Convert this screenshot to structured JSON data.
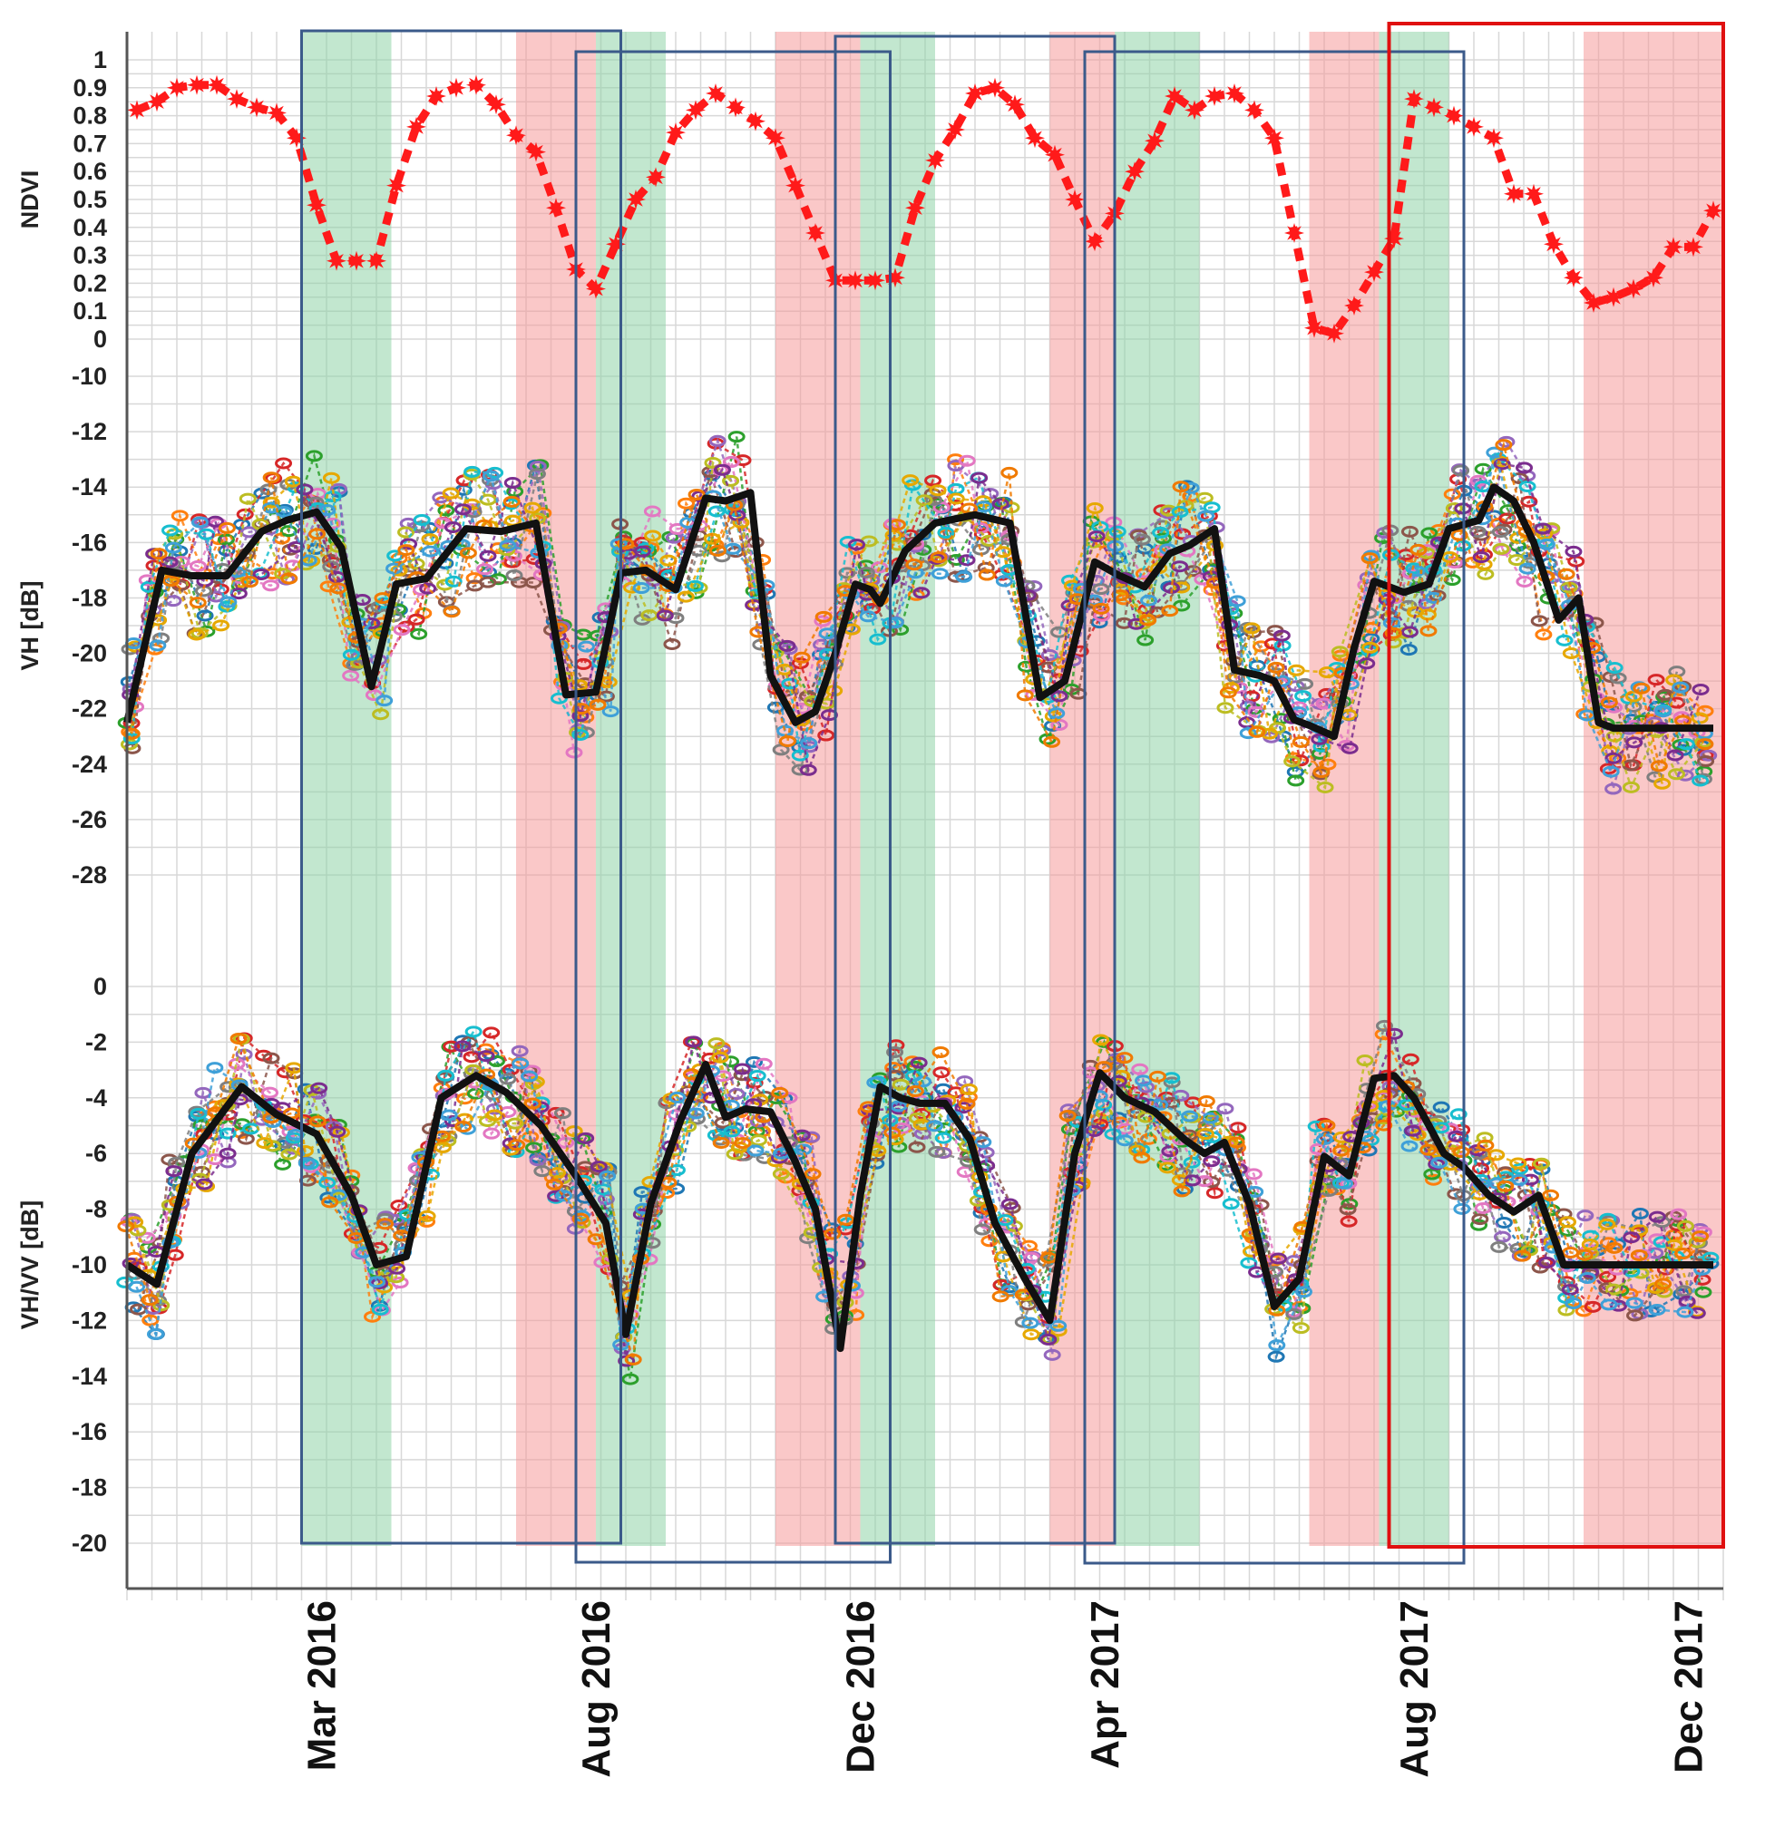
{
  "chart_data": {
    "type": "line",
    "colors": {
      "ndvi": "#ff1a1a",
      "mean_line": "#111111",
      "grid": "#d8d8d8",
      "band_green": "#8fd4a8",
      "band_red": "#f59a9a",
      "window_box": "#3b5a8a",
      "current_window_box": "#e01010",
      "scatter_palette": [
        "#1f77b4",
        "#ff7f0e",
        "#2ca02c",
        "#d62728",
        "#9467bd",
        "#8c564b",
        "#e377c2",
        "#7f7f7f",
        "#bcbd22",
        "#17becf",
        "#e6a800",
        "#7b2d8e",
        "#3fa0d8",
        "#f07a00"
      ]
    },
    "date_axis": {
      "labels": [
        "Mar 2016",
        "Aug 2016",
        "Dec 2016",
        "Apr 2017",
        "Aug 2017",
        "Dec 2017"
      ],
      "label_times": [
        3.9,
        9.4,
        14.7,
        19.6,
        25.8,
        31.3
      ],
      "range": [
        0,
        32
      ]
    },
    "panels": [
      {
        "id": "ndvi",
        "ylabel": "NDVI",
        "ylim": [
          0,
          1
        ],
        "ticks": [
          "1",
          "0.9",
          "0.8",
          "0.7",
          "0.6",
          "0.5",
          "0.4",
          "0.3",
          "0.2",
          "0.1",
          "0"
        ],
        "tick_values": [
          1,
          0.9,
          0.8,
          0.7,
          0.6,
          0.5,
          0.4,
          0.3,
          0.2,
          0.1,
          0
        ],
        "series": [
          {
            "name": "NDVI",
            "x": [
              0.2,
              0.6,
              1.0,
              1.4,
              1.8,
              2.2,
              2.6,
              3.0,
              3.4,
              3.8,
              4.2,
              4.6,
              5.0,
              5.4,
              5.8,
              6.2,
              6.6,
              7.0,
              7.4,
              7.8,
              8.2,
              8.6,
              9.0,
              9.4,
              9.8,
              10.2,
              10.6,
              11.0,
              11.4,
              11.8,
              12.2,
              12.6,
              13.0,
              13.4,
              13.8,
              14.2,
              14.6,
              15.0,
              15.4,
              15.8,
              16.2,
              16.6,
              17.0,
              17.4,
              17.8,
              18.2,
              18.6,
              19.0,
              19.4,
              19.8,
              20.2,
              20.6,
              21.0,
              21.4,
              21.8,
              22.2,
              22.6,
              23.0,
              23.4,
              23.8,
              24.2,
              24.6,
              25.0,
              25.4,
              25.8,
              26.2,
              26.6,
              27.0,
              27.4,
              27.8,
              28.2,
              28.6,
              29.0,
              29.4,
              29.8,
              30.2,
              30.6,
              31.0,
              31.4,
              31.8
            ],
            "y": [
              0.82,
              0.85,
              0.9,
              0.91,
              0.91,
              0.86,
              0.83,
              0.81,
              0.72,
              0.48,
              0.28,
              0.28,
              0.28,
              0.55,
              0.76,
              0.87,
              0.9,
              0.91,
              0.84,
              0.73,
              0.67,
              0.47,
              0.25,
              0.18,
              0.34,
              0.5,
              0.58,
              0.74,
              0.82,
              0.88,
              0.83,
              0.78,
              0.72,
              0.55,
              0.38,
              0.21,
              0.21,
              0.21,
              0.22,
              0.47,
              0.64,
              0.75,
              0.88,
              0.9,
              0.84,
              0.72,
              0.66,
              0.5,
              0.35,
              0.45,
              0.6,
              0.71,
              0.87,
              0.82,
              0.87,
              0.88,
              0.82,
              0.72,
              0.38,
              0.04,
              0.02,
              0.12,
              0.24,
              0.36,
              0.86,
              0.83,
              0.8,
              0.76,
              0.72,
              0.52,
              0.52,
              0.34,
              0.22,
              0.13,
              0.15,
              0.18,
              0.22,
              0.33,
              0.33,
              0.46
            ]
          }
        ]
      },
      {
        "id": "vh",
        "ylabel": "VH [dB]",
        "ylim": [
          -29,
          -9.5
        ],
        "ticks": [
          "-10",
          "-12",
          "-14",
          "-16",
          "-18",
          "-20",
          "-22",
          "-24",
          "-26",
          "-28"
        ],
        "tick_values": [
          -10,
          -12,
          -14,
          -16,
          -18,
          -20,
          -22,
          -24,
          -26,
          -28
        ],
        "series": [
          {
            "name": "mean",
            "x": [
              0,
              0.7,
              1.3,
              2.0,
              2.7,
              3.2,
              3.8,
              4.3,
              4.9,
              5.4,
              6.0,
              6.8,
              7.5,
              8.2,
              8.8,
              9.4,
              9.9,
              10.4,
              11.0,
              11.6,
              12.0,
              12.5,
              12.9,
              13.4,
              13.8,
              14.2,
              14.6,
              14.9,
              15.1,
              15.6,
              16.2,
              17.0,
              17.7,
              18.3,
              18.8,
              19.4,
              19.9,
              20.4,
              20.9,
              21.3,
              21.8,
              22.2,
              22.7,
              23.0,
              23.4,
              23.7,
              24.2,
              24.6,
              25.0,
              25.6,
              26.1,
              26.5,
              27.1,
              27.4,
              27.8,
              28.2,
              28.7,
              29.1,
              29.5,
              29.8,
              30.2,
              30.6,
              30.9,
              31.3,
              31.8
            ],
            "y": [
              -22.5,
              -17.0,
              -17.2,
              -17.2,
              -15.6,
              -15.2,
              -14.9,
              -16.2,
              -21.2,
              -17.5,
              -17.3,
              -15.5,
              -15.6,
              -15.3,
              -21.5,
              -21.4,
              -17.1,
              -17.0,
              -17.7,
              -14.4,
              -14.5,
              -14.2,
              -20.8,
              -22.5,
              -22.1,
              -20.0,
              -17.5,
              -17.7,
              -18.2,
              -16.3,
              -15.3,
              -15.0,
              -15.3,
              -21.6,
              -21.0,
              -16.7,
              -17.2,
              -17.6,
              -16.4,
              -16.1,
              -15.5,
              -20.6,
              -20.8,
              -21.0,
              -22.4,
              -22.6,
              -23.0,
              -19.8,
              -17.4,
              -17.8,
              -17.5,
              -15.5,
              -15.2,
              -14.0,
              -14.5,
              -16.0,
              -18.8,
              -18.0,
              -22.5,
              -22.7,
              -22.7,
              -22.7,
              -22.7,
              -22.7,
              -22.7
            ]
          }
        ]
      },
      {
        "id": "vhvv",
        "ylabel": "VH/VV [dB]",
        "ylim": [
          -21,
          0.5
        ],
        "ticks": [
          "0",
          "-2",
          "-4",
          "-6",
          "-8",
          "-10",
          "-12",
          "-14",
          "-16",
          "-18",
          "-20"
        ],
        "tick_values": [
          0,
          -2,
          -4,
          -6,
          -8,
          -10,
          -12,
          -14,
          -16,
          -18,
          -20
        ],
        "series": [
          {
            "name": "mean",
            "x": [
              0,
              0.6,
              1.3,
              2.3,
              3.0,
              3.8,
              4.5,
              5.0,
              5.6,
              6.3,
              7.0,
              7.6,
              8.3,
              9.0,
              9.6,
              10.0,
              10.5,
              11.1,
              11.6,
              12.0,
              12.4,
              12.9,
              13.4,
              13.8,
              14.3,
              14.7,
              15.1,
              15.5,
              15.9,
              16.4,
              16.9,
              17.4,
              18.0,
              18.5,
              19.0,
              19.5,
              20.0,
              20.6,
              21.2,
              21.6,
              22.0,
              22.5,
              23.0,
              23.5,
              24.0,
              24.5,
              25.0,
              25.4,
              25.8,
              26.1,
              26.4,
              26.8,
              27.3,
              27.8,
              28.3,
              28.8,
              29.3,
              29.8,
              30.4,
              30.9,
              31.2,
              31.5,
              31.8
            ],
            "y": [
              -10.0,
              -10.7,
              -6.0,
              -3.6,
              -4.6,
              -5.3,
              -7.5,
              -10.0,
              -9.7,
              -4.0,
              -3.2,
              -3.8,
              -5.0,
              -6.8,
              -8.5,
              -12.5,
              -7.8,
              -4.8,
              -2.8,
              -4.7,
              -4.4,
              -4.5,
              -6.3,
              -8.0,
              -13.0,
              -7.5,
              -3.6,
              -4.0,
              -4.2,
              -4.2,
              -5.5,
              -8.5,
              -10.5,
              -12.0,
              -6.0,
              -3.1,
              -4.0,
              -4.5,
              -5.5,
              -6.0,
              -5.6,
              -7.8,
              -11.5,
              -10.5,
              -6.1,
              -6.8,
              -3.3,
              -3.2,
              -4.0,
              -5.0,
              -6.0,
              -6.5,
              -7.5,
              -8.1,
              -7.5,
              -10.0,
              -10.0,
              -10.0,
              -10.0,
              -10.0,
              -10.0,
              -10.0,
              -10.0
            ]
          }
        ]
      }
    ],
    "green_bands": [
      [
        3.5,
        5.3
      ],
      [
        9.4,
        10.8
      ],
      [
        14.7,
        16.2
      ],
      [
        19.8,
        21.5
      ],
      [
        25.1,
        26.5
      ]
    ],
    "red_bands": [
      [
        7.8,
        9.4
      ],
      [
        13.0,
        14.7
      ],
      [
        18.5,
        19.8
      ],
      [
        23.7,
        25.1
      ],
      [
        29.2,
        32.0
      ]
    ],
    "analysis_windows": [
      {
        "t": [
          3.5,
          9.9
        ],
        "style": "normal"
      },
      {
        "t": [
          9.0,
          15.3
        ],
        "style": "normal"
      },
      {
        "t": [
          14.2,
          19.8
        ],
        "style": "normal"
      },
      {
        "t": [
          19.2,
          26.8
        ],
        "style": "normal"
      },
      {
        "t": [
          25.3,
          32.0
        ],
        "style": "current"
      }
    ]
  }
}
